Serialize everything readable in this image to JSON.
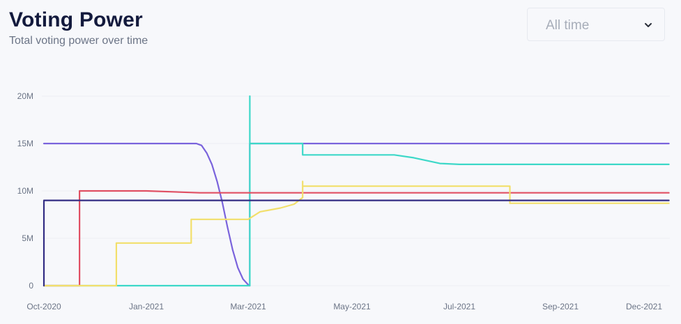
{
  "header": {
    "title": "Voting Power",
    "subtitle": "Total voting power over time"
  },
  "range_select": {
    "value": "All time",
    "icon": "chevron-down-icon"
  },
  "chart_data": {
    "type": "line",
    "x_ticks": [
      "Oct-2020",
      "Jan-2021",
      "Mar-2021",
      "May-2021",
      "Jul-2021",
      "Sep-2021",
      "Dec-2021"
    ],
    "y_ticks": [
      "0",
      "5M",
      "10M",
      "15M",
      "20M"
    ],
    "ylim": [
      0,
      20000000
    ],
    "grid": true,
    "series": [
      {
        "color": "#7a63dc",
        "points": [
          [
            "2020-10-01",
            15000000
          ],
          [
            "2020-12-10",
            15000000
          ],
          [
            "2021-01-30",
            15000000
          ],
          [
            "2021-02-02",
            14800000
          ],
          [
            "2021-02-05",
            14000000
          ],
          [
            "2021-02-08",
            12800000
          ],
          [
            "2021-02-11",
            11000000
          ],
          [
            "2021-02-14",
            8800000
          ],
          [
            "2021-02-17",
            6200000
          ],
          [
            "2021-02-20",
            3800000
          ],
          [
            "2021-02-23",
            1900000
          ],
          [
            "2021-02-26",
            700000
          ],
          [
            "2021-03-01",
            100000
          ],
          [
            "2021-03-02",
            0
          ],
          [
            "2021-03-02",
            15000000
          ],
          [
            "2021-12-28",
            15000000
          ]
        ]
      },
      {
        "color": "#3dd8c8",
        "points": [
          [
            "2020-10-01",
            0
          ],
          [
            "2021-03-02",
            0
          ],
          [
            "2021-03-02",
            20000000
          ],
          [
            "2021-03-02",
            15000000
          ],
          [
            "2021-04-02",
            15000000
          ],
          [
            "2021-04-02",
            13800000
          ],
          [
            "2021-05-25",
            13800000
          ],
          [
            "2021-06-05",
            13500000
          ],
          [
            "2021-06-20",
            12900000
          ],
          [
            "2021-07-01",
            12800000
          ],
          [
            "2021-12-28",
            12800000
          ]
        ]
      },
      {
        "color": "#e04f63",
        "points": [
          [
            "2020-10-01",
            0
          ],
          [
            "2020-11-02",
            0
          ],
          [
            "2020-11-02",
            10000000
          ],
          [
            "2021-01-01",
            10000000
          ],
          [
            "2021-02-01",
            9800000
          ],
          [
            "2021-12-28",
            9800000
          ]
        ]
      },
      {
        "color": "#f2df6b",
        "points": [
          [
            "2020-10-01",
            0
          ],
          [
            "2020-12-05",
            0
          ],
          [
            "2020-12-05",
            4500000
          ],
          [
            "2021-01-27",
            4500000
          ],
          [
            "2021-01-27",
            7000000
          ],
          [
            "2021-03-01",
            7000000
          ],
          [
            "2021-03-08",
            7800000
          ],
          [
            "2021-03-20",
            8200000
          ],
          [
            "2021-03-28",
            8600000
          ],
          [
            "2021-04-02",
            9300000
          ],
          [
            "2021-04-02",
            11000000
          ],
          [
            "2021-04-02",
            10500000
          ],
          [
            "2021-08-01",
            10500000
          ],
          [
            "2021-08-01",
            8700000
          ],
          [
            "2021-12-28",
            8700000
          ]
        ]
      },
      {
        "color": "#332d84",
        "points": [
          [
            "2020-10-01",
            0
          ],
          [
            "2020-10-01",
            9000000
          ],
          [
            "2021-12-28",
            9000000
          ]
        ]
      }
    ]
  }
}
